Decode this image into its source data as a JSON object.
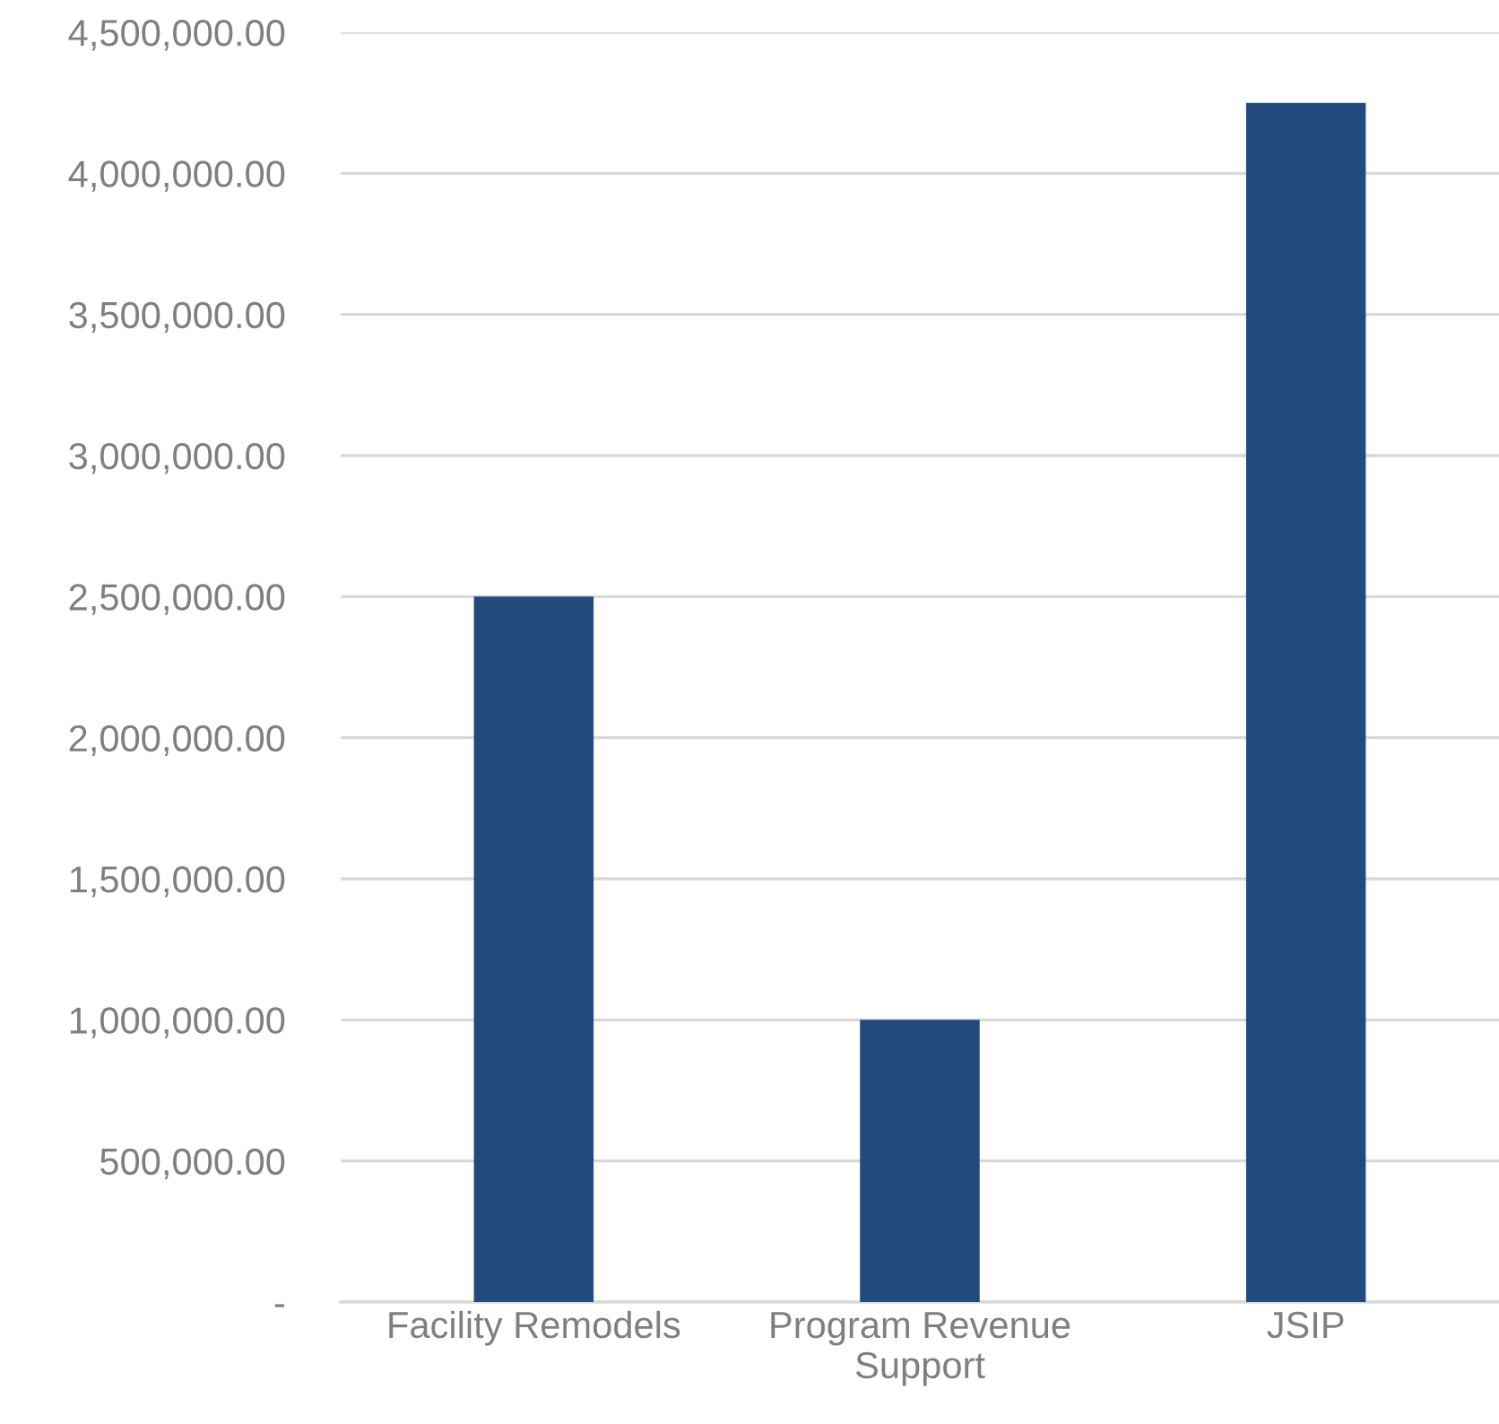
{
  "chart_data": {
    "type": "bar",
    "categories": [
      "Facility Remodels",
      "Program Revenue Support",
      "JSIP"
    ],
    "values": [
      2500000,
      1000000,
      4250000
    ],
    "color": "#234a7c",
    "ylim": [
      0,
      4500000
    ],
    "yticks": [
      {
        "value": 0,
        "label": "-"
      },
      {
        "value": 500000,
        "label": "500,000.00"
      },
      {
        "value": 1000000,
        "label": "1,000,000.00"
      },
      {
        "value": 1500000,
        "label": "1,500,000.00"
      },
      {
        "value": 2000000,
        "label": "2,000,000.00"
      },
      {
        "value": 2500000,
        "label": "2,500,000.00"
      },
      {
        "value": 3000000,
        "label": "3,000,000.00"
      },
      {
        "value": 3500000,
        "label": "3,500,000.00"
      },
      {
        "value": 4000000,
        "label": "4,000,000.00"
      },
      {
        "value": 4500000,
        "label": "4,500,000.00"
      }
    ],
    "grid": "y"
  }
}
